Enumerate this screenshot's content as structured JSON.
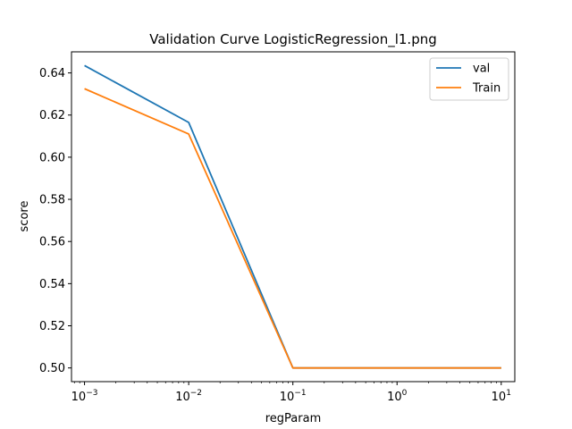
{
  "chart_data": {
    "type": "line",
    "title": "Validation Curve LogisticRegression_l1.png",
    "xlabel": "regParam",
    "ylabel": "score",
    "xscale": "log",
    "xlim": [
      0.00075,
      13.5
    ],
    "ylim": [
      0.4935,
      0.65
    ],
    "x": [
      0.001,
      0.01,
      0.1,
      1,
      10
    ],
    "xticks": [
      0.001,
      0.01,
      0.1,
      1,
      10
    ],
    "xtick_labels": [
      {
        "base": "10",
        "exp": "−3"
      },
      {
        "base": "10",
        "exp": "−2"
      },
      {
        "base": "10",
        "exp": "−1"
      },
      {
        "base": "10",
        "exp": "0"
      },
      {
        "base": "10",
        "exp": "1"
      }
    ],
    "yticks": [
      0.5,
      0.52,
      0.54,
      0.56,
      0.58,
      0.6,
      0.62,
      0.64
    ],
    "ytick_labels": [
      "0.50",
      "0.52",
      "0.54",
      "0.56",
      "0.58",
      "0.60",
      "0.62",
      "0.64"
    ],
    "grid": false,
    "legend_position": "top-right",
    "series": [
      {
        "name": "val",
        "color": "#1f77b4",
        "values": [
          0.6435,
          0.6165,
          0.5,
          0.5,
          0.5
        ]
      },
      {
        "name": "Train",
        "color": "#ff7f0e",
        "values": [
          0.6325,
          0.611,
          0.5,
          0.5,
          0.5
        ]
      }
    ]
  }
}
